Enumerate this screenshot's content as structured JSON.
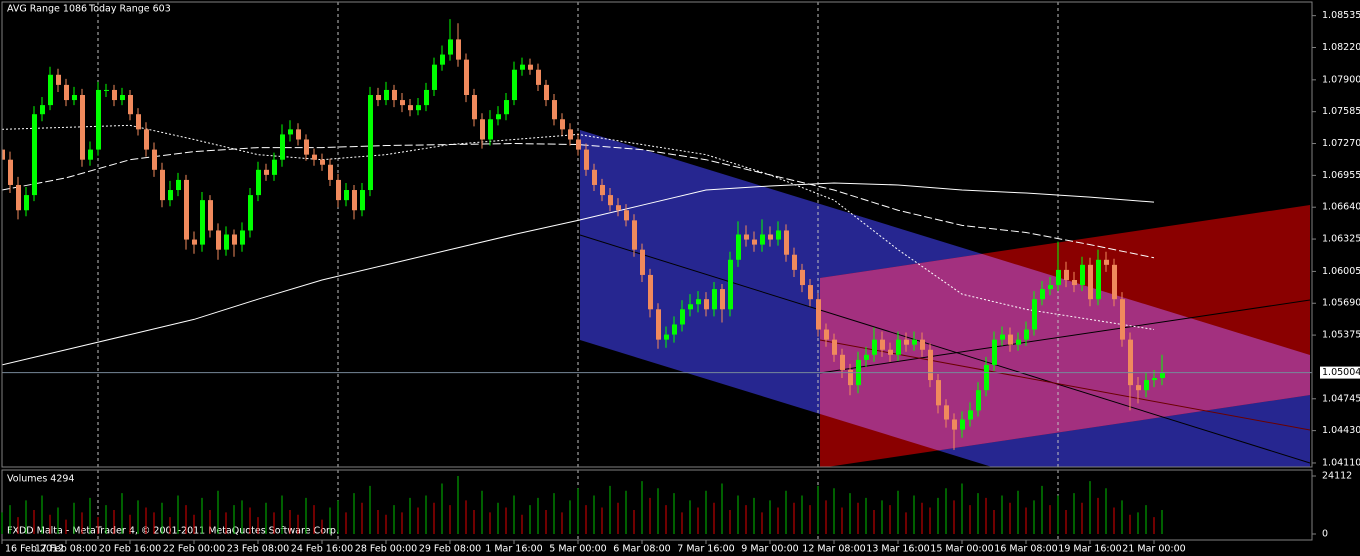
{
  "header": {
    "avg_range": "AVG Range 1086",
    "today_range": "Today Range 603"
  },
  "footer": "FXDD Malta - MetaTrader 4, © 2001-2011 MetaQuotes Software Corp.",
  "chart_data": [
    {
      "type": "candlestick",
      "x_labels": [
        "16 Feb 2012",
        "17 Feb 08:00",
        "20 Feb 16:00",
        "22 Feb 00:00",
        "23 Feb 08:00",
        "24 Feb 16:00",
        "28 Feb 00:00",
        "29 Feb 08:00",
        "1 Mar 16:00",
        "5 Mar 00:00",
        "6 Mar 08:00",
        "7 Mar 16:00",
        "9 Mar 00:00",
        "12 Mar 08:00",
        "13 Mar 16:00",
        "15 Mar 00:00",
        "16 Mar 08:00",
        "19 Mar 16:00",
        "21 Mar 00:00"
      ],
      "open": [
        1.0721,
        1.0711,
        1.0686,
        1.0661,
        1.0676,
        1.0756,
        1.0765,
        1.0795,
        1.0785,
        1.077,
        1.0775,
        1.0711,
        1.0721,
        1.078,
        1.078,
        1.077,
        1.0775,
        1.0756,
        1.0741,
        1.0721,
        1.0701,
        1.0671,
        1.0681,
        1.0691,
        1.0632,
        1.0627,
        1.0671,
        1.0641,
        1.0622,
        1.0637,
        1.0627,
        1.0641,
        1.0676,
        1.0701,
        1.0696,
        1.0711,
        1.0736,
        1.0741,
        1.0731,
        1.0716,
        1.0711,
        1.0706,
        1.0691,
        1.0671,
        1.0681,
        1.0661,
        1.0681,
        1.0775,
        1.077,
        1.078,
        1.077,
        1.0765,
        1.076,
        1.0765,
        1.078,
        1.0805,
        1.0815,
        1.083,
        1.081,
        1.0775,
        1.0751,
        1.0731,
        1.0751,
        1.0756,
        1.077,
        1.08,
        1.0805,
        1.08,
        1.0785,
        1.077,
        1.0751,
        1.0741,
        1.0731,
        1.0721,
        1.0701,
        1.0686,
        1.0676,
        1.0666,
        1.0661,
        1.0651,
        1.0622,
        1.0597,
        1.0563,
        1.0533,
        1.0538,
        1.0548,
        1.0563,
        1.0568,
        1.0573,
        1.0563,
        1.0583,
        1.0563,
        1.0612,
        1.0637,
        1.0632,
        1.0627,
        1.0637,
        1.0632,
        1.0641,
        1.0617,
        1.0602,
        1.0587,
        1.0573,
        1.0543,
        1.0533,
        1.0518,
        1.0503,
        1.0488,
        1.0513,
        1.0518,
        1.0533,
        1.0523,
        1.0518,
        1.0533,
        1.0528,
        1.0533,
        1.0523,
        1.0493,
        1.0468,
        1.0454,
        1.0444,
        1.0454,
        1.0463,
        1.0483,
        1.0508,
        1.0533,
        1.0538,
        1.0528,
        1.0533,
        1.0543,
        1.0573,
        1.0583,
        1.0587,
        1.0602,
        1.0592,
        1.0587,
        1.0607,
        1.0573,
        1.0612,
        1.0607,
        1.0573,
        1.0533,
        1.0488,
        1.0483,
        1.0493,
        1.0495
      ],
      "high": [
        1.0729,
        1.0719,
        1.0694,
        1.0684,
        1.0764,
        1.0773,
        1.0803,
        1.0801,
        1.0791,
        1.0783,
        1.0781,
        1.0729,
        1.0788,
        1.0786,
        1.0785,
        1.0782,
        1.078,
        1.0762,
        1.0748,
        1.0728,
        1.0708,
        1.069,
        1.0698,
        1.0696,
        1.064,
        1.0679,
        1.0676,
        1.0648,
        1.0645,
        1.0642,
        1.0649,
        1.0683,
        1.0709,
        1.0707,
        1.0718,
        1.0746,
        1.075,
        1.0747,
        1.0736,
        1.0722,
        1.0717,
        1.0712,
        1.0697,
        1.0688,
        1.0686,
        1.0688,
        1.0783,
        1.0782,
        1.0788,
        1.0785,
        1.0777,
        1.0771,
        1.0772,
        1.0787,
        1.0812,
        1.0824,
        1.085,
        1.0846,
        1.0816,
        1.0781,
        1.0757,
        1.076,
        1.0764,
        1.0777,
        1.0808,
        1.0812,
        1.0811,
        1.0806,
        1.079,
        1.0776,
        1.0757,
        1.0747,
        1.0737,
        1.0727,
        1.0707,
        1.0692,
        1.0683,
        1.0673,
        1.0667,
        1.0657,
        1.0628,
        1.0603,
        1.0569,
        1.0546,
        1.0556,
        1.0572,
        1.0578,
        1.0581,
        1.058,
        1.059,
        1.0588,
        1.062,
        1.065,
        1.0646,
        1.064,
        1.0652,
        1.0645,
        1.065,
        1.0647,
        1.0624,
        1.0608,
        1.0593,
        1.0579,
        1.0549,
        1.0539,
        1.0524,
        1.0509,
        1.0521,
        1.0526,
        1.0545,
        1.0541,
        1.053,
        1.0541,
        1.054,
        1.0541,
        1.054,
        1.0529,
        1.0499,
        1.0474,
        1.046,
        1.0462,
        1.0471,
        1.0491,
        1.0516,
        1.0541,
        1.0546,
        1.0545,
        1.054,
        1.0551,
        1.0581,
        1.0591,
        1.0595,
        1.063,
        1.061,
        1.06,
        1.0615,
        1.0614,
        1.0622,
        1.062,
        1.0613,
        1.058,
        1.054,
        1.0496,
        1.05,
        1.0503,
        1.0518
      ],
      "low": [
        1.0703,
        1.0678,
        1.0652,
        1.0655,
        1.067,
        1.0749,
        1.076,
        1.0778,
        1.0764,
        1.0765,
        1.0704,
        1.0705,
        1.0715,
        1.0773,
        1.0764,
        1.0765,
        1.075,
        1.0735,
        1.0714,
        1.0694,
        1.0664,
        1.0665,
        1.0675,
        1.0622,
        1.0618,
        1.062,
        1.0634,
        1.0612,
        1.0616,
        1.0615,
        1.062,
        1.0634,
        1.067,
        1.069,
        1.069,
        1.0704,
        1.0729,
        1.0725,
        1.071,
        1.0705,
        1.07,
        1.0685,
        1.0664,
        1.0665,
        1.0652,
        1.0655,
        1.0675,
        1.0764,
        1.0765,
        1.0763,
        1.0758,
        1.0754,
        1.0755,
        1.0759,
        1.0774,
        1.0799,
        1.0809,
        1.0803,
        1.0768,
        1.0744,
        1.0722,
        1.0725,
        1.0745,
        1.075,
        1.0765,
        1.0794,
        1.0795,
        1.0779,
        1.0764,
        1.0745,
        1.0735,
        1.0725,
        1.0715,
        1.0695,
        1.068,
        1.067,
        1.066,
        1.0655,
        1.0645,
        1.0615,
        1.059,
        1.0555,
        1.0524,
        1.0525,
        1.053,
        1.0541,
        1.0556,
        1.056,
        1.0556,
        1.0556,
        1.055,
        1.0556,
        1.0605,
        1.0625,
        1.062,
        1.062,
        1.0625,
        1.0626,
        1.061,
        1.0595,
        1.058,
        1.0566,
        1.0536,
        1.0526,
        1.0511,
        1.0495,
        1.0478,
        1.048,
        1.0506,
        1.0511,
        1.0516,
        1.0511,
        1.0512,
        1.0521,
        1.0522,
        1.0516,
        1.0486,
        1.046,
        1.0446,
        1.0424,
        1.0436,
        1.0447,
        1.0457,
        1.0477,
        1.0502,
        1.0527,
        1.0521,
        1.0522,
        1.0527,
        1.0537,
        1.0567,
        1.0577,
        1.0581,
        1.0585,
        1.058,
        1.0581,
        1.0566,
        1.0567,
        1.06,
        1.0566,
        1.0526,
        1.0463,
        1.047,
        1.0476,
        1.0486,
        1.0488
      ],
      "close": [
        1.0711,
        1.0686,
        1.0661,
        1.0676,
        1.0756,
        1.0765,
        1.0795,
        1.0785,
        1.077,
        1.0775,
        1.0711,
        1.0721,
        1.078,
        1.078,
        1.077,
        1.0775,
        1.0756,
        1.0741,
        1.0721,
        1.0701,
        1.0671,
        1.0681,
        1.0691,
        1.0632,
        1.0627,
        1.0671,
        1.0641,
        1.0622,
        1.0637,
        1.0627,
        1.0641,
        1.0676,
        1.0701,
        1.0696,
        1.0711,
        1.0736,
        1.0741,
        1.0731,
        1.0716,
        1.0711,
        1.0706,
        1.0691,
        1.0671,
        1.0681,
        1.0661,
        1.0681,
        1.0775,
        1.077,
        1.078,
        1.077,
        1.0765,
        1.076,
        1.0765,
        1.078,
        1.0805,
        1.0815,
        1.083,
        1.081,
        1.0775,
        1.0751,
        1.0731,
        1.0751,
        1.0756,
        1.077,
        1.08,
        1.0805,
        1.08,
        1.0785,
        1.077,
        1.0751,
        1.0741,
        1.0731,
        1.0721,
        1.0701,
        1.0686,
        1.0676,
        1.0666,
        1.0661,
        1.0651,
        1.0622,
        1.0597,
        1.0563,
        1.0533,
        1.0538,
        1.0548,
        1.0563,
        1.0568,
        1.0573,
        1.0563,
        1.0583,
        1.0563,
        1.0612,
        1.0637,
        1.0632,
        1.0627,
        1.0637,
        1.0632,
        1.0641,
        1.0617,
        1.0602,
        1.0587,
        1.0573,
        1.0543,
        1.0533,
        1.0518,
        1.0503,
        1.0488,
        1.0513,
        1.0518,
        1.0533,
        1.0523,
        1.0518,
        1.0533,
        1.0528,
        1.0533,
        1.0523,
        1.0493,
        1.0468,
        1.0454,
        1.0444,
        1.0454,
        1.0463,
        1.0483,
        1.0508,
        1.0533,
        1.0538,
        1.0528,
        1.0533,
        1.0543,
        1.0573,
        1.0583,
        1.0587,
        1.0602,
        1.0592,
        1.0587,
        1.0607,
        1.0573,
        1.0612,
        1.0607,
        1.0573,
        1.0533,
        1.0488,
        1.0483,
        1.0493,
        1.0495,
        1.05
      ],
      "up_color": "#00ff00",
      "down_color": "#f08a5d",
      "ylim": [
        1.0408,
        1.0867
      ],
      "yticks": [
        1.08535,
        {
          "value": 1.0822,
          "label": "1.08220"
        },
        {
          "value": 1.079,
          "label": "1.07900"
        },
        1.07585,
        {
          "value": 1.0727,
          "label": "1.07270"
        },
        1.06955,
        {
          "value": 1.0664,
          "label": "1.06640"
        },
        1.06325,
        1.06005,
        {
          "value": 1.0569,
          "label": "1.05690"
        },
        1.05375,
        1.04745,
        {
          "value": 1.0443,
          "label": "1.04430"
        },
        {
          "value": 1.0411,
          "label": "1.04110"
        }
      ],
      "current_price": 1.05004,
      "indicators": [
        {
          "color": "#ffffff",
          "dash": "none",
          "values": [
            1.0508,
            1.0523,
            1.0538,
            1.0553,
            1.0573,
            1.0592,
            1.0607,
            1.0622,
            1.0637,
            1.0651,
            1.0666,
            1.0681,
            1.0685,
            1.0688,
            1.0686,
            1.0681,
            1.0678,
            1.0674,
            1.0669
          ]
        },
        {
          "color": "#ffffff",
          "dash": "8 3",
          "values": [
            1.0681,
            1.0693,
            1.0711,
            1.0719,
            1.0723,
            1.0723,
            1.0725,
            1.0726,
            1.0727,
            1.0726,
            1.0721,
            1.0711,
            1.0696,
            1.0681,
            1.0661,
            1.0646,
            1.0639,
            1.0627,
            1.0614
          ]
        },
        {
          "color": "#ffffff",
          "dash": "2 2",
          "values": [
            1.0741,
            1.0743,
            1.0745,
            1.0731,
            1.0716,
            1.0711,
            1.0716,
            1.0726,
            1.0731,
            1.0736,
            1.0726,
            1.0716,
            1.0696,
            1.0671,
            1.0622,
            1.0578,
            1.0563,
            1.0553,
            1.0543
          ]
        }
      ]
    },
    {
      "type": "volume",
      "title": "Volumes 4294",
      "values": [
        9000,
        12000,
        7000,
        14000,
        10000,
        16000,
        8000,
        11000,
        6000,
        13000,
        9000,
        15000,
        7000,
        12000,
        10000,
        17000,
        8000,
        14000,
        11000,
        9000,
        13000,
        7000,
        16000,
        12000,
        8000,
        15000,
        10000,
        18000,
        9000,
        12000,
        14000,
        11000,
        7000,
        13000,
        9000,
        16000,
        10000,
        8000,
        15000,
        12000,
        6000,
        11000,
        14000,
        9000,
        17000,
        13000,
        20000,
        10000,
        8000,
        12000,
        9000,
        15000,
        11000,
        16000,
        13000,
        21000,
        12000,
        24112,
        14000,
        10000,
        18000,
        9000,
        13000,
        11000,
        16000,
        8000,
        12000,
        15000,
        10000,
        17000,
        9000,
        14000,
        19000,
        12000,
        16000,
        11000,
        20000,
        13000,
        18000,
        10000,
        22000,
        15000,
        19000,
        12000,
        17000,
        9000,
        14000,
        11000,
        18000,
        13000,
        21000,
        10000,
        16000,
        12000,
        15000,
        9000,
        14000,
        11000,
        18000,
        13000,
        16000,
        12000,
        20000,
        14000,
        19000,
        11000,
        17000,
        13000,
        15000,
        10000,
        14000,
        12000,
        18000,
        9000,
        16000,
        13000,
        11000,
        15000,
        19000,
        14000,
        21000,
        12000,
        17000,
        15000,
        10000,
        16000,
        13000,
        18000,
        11000,
        14000,
        20000,
        12000,
        16000,
        10000,
        17000,
        13000,
        22000,
        15000,
        19000,
        11000,
        14000,
        8000,
        9000,
        12000,
        7000,
        10000
      ],
      "up_color": "#00c000",
      "down_color": "#e00000",
      "ylim": [
        0,
        24112
      ],
      "yticks": [
        0,
        24112
      ]
    }
  ]
}
